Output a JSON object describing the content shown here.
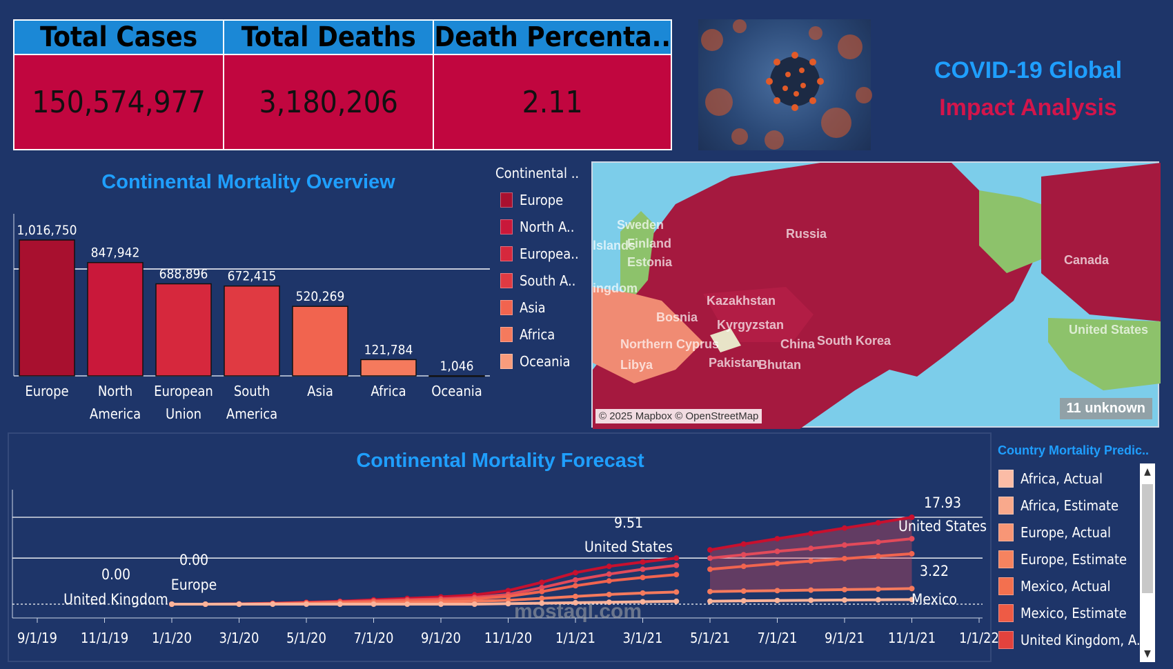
{
  "kpi": {
    "headers": [
      "Total Cases",
      "Total Deaths",
      "Death Percenta.."
    ],
    "values": [
      "150,574,977",
      "3,180,206",
      "2.11"
    ]
  },
  "dashboard_title": {
    "line1": "COVID-19 Global",
    "line2": "Impact Analysis"
  },
  "colors": {
    "background": "#1e3569",
    "title_blue": "#1f9fff",
    "kpi_header": "#1b88d6",
    "kpi_value": "#c1063f"
  },
  "map": {
    "attribution": "© 2025 Mapbox © OpenStreetMap",
    "unknown_badge": "11 unknown",
    "labels": [
      "Sweden",
      "Finland",
      "Estonia",
      "Russia",
      "Canada",
      "Kazakhstan",
      "Kyrgyzstan",
      "Northern Cyprus",
      "China",
      "South Korea",
      "Pakistan",
      "Bhutan",
      "Libya",
      "United States",
      "lslands",
      "ingdom",
      "Bosnia"
    ]
  },
  "watermark": "mostaql.com",
  "chart_data": [
    {
      "type": "bar",
      "title": "Continental Mortality Overview",
      "categories": [
        "Europe",
        "North America",
        "European Union",
        "South America",
        "Asia",
        "Africa",
        "Oceania"
      ],
      "category_lines": [
        [
          "Europe"
        ],
        [
          "North",
          "America"
        ],
        [
          "European",
          "Union"
        ],
        [
          "South",
          "America"
        ],
        [
          "Asia"
        ],
        [
          "Africa"
        ],
        [
          "Oceania"
        ]
      ],
      "values": [
        1016750,
        847942,
        688896,
        672415,
        520269,
        121784,
        1046
      ],
      "value_labels": [
        "1,016,750",
        "847,942",
        "688,896",
        "672,415",
        "520,269",
        "121,784",
        "1,046"
      ],
      "colors": [
        "#a8102f",
        "#c9183a",
        "#d6283d",
        "#e03a42",
        "#f1644f",
        "#f57a5d",
        "#f99c7c"
      ],
      "reference_line": 800000,
      "ylim": [
        0,
        1100000
      ],
      "legend": {
        "title": "Continental ..",
        "placement": "right",
        "entries": [
          "Europe",
          "North A..",
          "Europea..",
          "South A..",
          "Asia",
          "Africa",
          "Oceania"
        ]
      }
    },
    {
      "type": "line",
      "title": "Continental Mortality Forecast",
      "x_ticks": [
        "9/1/19",
        "11/1/19",
        "1/1/20",
        "3/1/20",
        "5/1/20",
        "7/1/20",
        "9/1/20",
        "11/1/20",
        "1/1/21",
        "3/1/21",
        "5/1/21",
        "7/1/21",
        "9/1/21",
        "11/1/21",
        "1/1/22"
      ],
      "ylim": [
        -0.5,
        20
      ],
      "reference_lines": [
        0,
        9.51,
        17.93
      ],
      "x": [
        "2020-01-01",
        "2020-02-01",
        "2020-03-01",
        "2020-04-01",
        "2020-05-01",
        "2020-06-01",
        "2020-07-01",
        "2020-08-01",
        "2020-09-01",
        "2020-10-01",
        "2020-11-01",
        "2020-12-01",
        "2021-01-01",
        "2021-02-01",
        "2021-03-01",
        "2021-04-01"
      ],
      "forecast_x": [
        "2021-05-01",
        "2021-06-01",
        "2021-07-01",
        "2021-08-01",
        "2021-09-01",
        "2021-10-01",
        "2021-11-01"
      ],
      "series": [
        {
          "name": "United States",
          "color": "#c8102e",
          "actual": [
            0,
            0,
            0.05,
            0.2,
            0.4,
            0.6,
            0.9,
            1.2,
            1.5,
            1.9,
            2.8,
            4.5,
            6.5,
            7.8,
            8.7,
            9.51
          ],
          "estimate": [
            11.2,
            12.4,
            13.5,
            14.6,
            15.7,
            16.8,
            17.93
          ]
        },
        {
          "name": "United States band",
          "color": "#e24a5a",
          "actual": [
            0,
            0,
            0.05,
            0.15,
            0.3,
            0.5,
            0.7,
            0.9,
            1.1,
            1.4,
            2.0,
            3.4,
            5.0,
            6.2,
            7.2,
            8.0
          ],
          "estimate": [
            9.5,
            10.2,
            10.9,
            11.5,
            12.2,
            12.8,
            13.5
          ]
        },
        {
          "name": "Europe",
          "color": "#f1644f",
          "actual": [
            0,
            0,
            0.02,
            0.1,
            0.25,
            0.4,
            0.55,
            0.7,
            0.85,
            1.1,
            1.6,
            2.6,
            3.8,
            4.8,
            5.5,
            6.1
          ],
          "estimate": [
            7.2,
            7.8,
            8.4,
            8.9,
            9.4,
            9.9,
            10.4
          ]
        },
        {
          "name": "Mexico",
          "color": "#f57a5d",
          "actual": [
            0,
            0,
            0,
            0.05,
            0.1,
            0.2,
            0.3,
            0.4,
            0.5,
            0.6,
            0.8,
            1.2,
            1.6,
            2.0,
            2.3,
            2.5
          ],
          "estimate": [
            2.6,
            2.7,
            2.8,
            2.9,
            3.0,
            3.1,
            3.22
          ]
        },
        {
          "name": "United Kingdom",
          "color": "#fbb39a",
          "actual": [
            0,
            0,
            0,
            0,
            0,
            0,
            0,
            0,
            0,
            0,
            0.1,
            0.2,
            0.3,
            0.4,
            0.5,
            0.6
          ],
          "estimate": [
            0.6,
            0.7,
            0.75,
            0.8,
            0.85,
            0.9,
            0.95
          ]
        }
      ],
      "annotations": [
        {
          "value": "0.00",
          "label": "United Kingdom"
        },
        {
          "value": "0.00",
          "label": "Europe"
        },
        {
          "value": "9.51",
          "label": "United States"
        },
        {
          "value": "17.93",
          "label": "United States"
        },
        {
          "value": "3.22",
          "label": "Mexico"
        }
      ],
      "legend": {
        "title": "Country Mortality Predic..",
        "placement": "right",
        "entries": [
          {
            "label": "Africa, Actual",
            "color": "#fbbca6"
          },
          {
            "label": "Africa, Estimate",
            "color": "#f9a98c"
          },
          {
            "label": "Europe, Actual",
            "color": "#f89676"
          },
          {
            "label": "Europe, Estimate",
            "color": "#f6835f"
          },
          {
            "label": "Mexico, Actual",
            "color": "#f3704f"
          },
          {
            "label": "Mexico, Estimate",
            "color": "#ee5b45"
          },
          {
            "label": "United Kingdom, A..",
            "color": "#e3423d"
          }
        ]
      }
    }
  ]
}
